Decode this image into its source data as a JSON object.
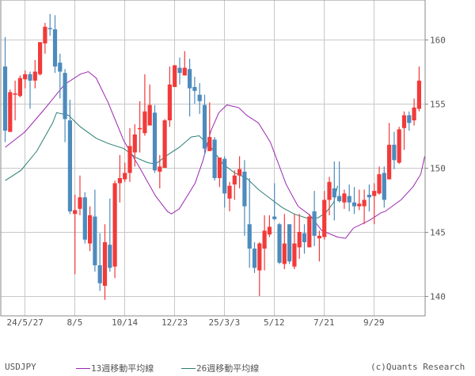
{
  "chart_data": {
    "type": "candlestick",
    "title": "",
    "symbol": "USDJPY",
    "credit": "(c)Quants Research",
    "frequency": "weekly",
    "ylim": [
      138.5,
      162.9
    ],
    "yticks": [
      140,
      145,
      150,
      155,
      160
    ],
    "xticks": [
      "24/5/27",
      "8/5",
      "10/14",
      "12/23",
      "25/3/3",
      "5/12",
      "7/21",
      "9/29"
    ],
    "xtick_candle_index": [
      4,
      14,
      24,
      34,
      44,
      54,
      64,
      74
    ],
    "grid": true,
    "colors": {
      "up": "#f23a3a",
      "down": "#4d8bbd",
      "ma13": "#9b27b0",
      "ma26": "#2a7f74",
      "grid": "#c8c8c8",
      "axis": "#888888"
    },
    "legend": [
      {
        "label": "13週移動平均線",
        "color": "#9b27b0"
      },
      {
        "label": "26週移動平均線",
        "color": "#2a7f74"
      }
    ],
    "candles": [
      [
        157.9,
        160.2,
        152.0,
        152.9
      ],
      [
        152.8,
        156.1,
        152.9,
        155.9
      ],
      [
        155.7,
        156.8,
        153.7,
        155.8
      ],
      [
        155.6,
        157.2,
        155.5,
        157.0
      ],
      [
        156.9,
        157.6,
        156.2,
        157.3
      ],
      [
        157.3,
        157.5,
        154.6,
        156.8
      ],
      [
        156.8,
        158.4,
        156.2,
        157.5
      ],
      [
        157.3,
        159.8,
        157.2,
        159.8
      ],
      [
        159.7,
        161.3,
        158.9,
        161.0
      ],
      [
        160.9,
        162.0,
        160.3,
        160.85
      ],
      [
        160.8,
        161.9,
        157.4,
        157.9
      ],
      [
        158.2,
        158.9,
        155.4,
        157.5
      ],
      [
        157.4,
        157.7,
        152.0,
        153.8
      ],
      [
        153.7,
        155.3,
        146.4,
        146.6
      ],
      [
        146.4,
        147.9,
        141.7,
        146.7
      ],
      [
        146.8,
        149.4,
        146.3,
        147.7
      ],
      [
        147.7,
        148.1,
        144.1,
        144.4
      ],
      [
        144.1,
        147.0,
        143.5,
        146.3
      ],
      [
        146.2,
        148.3,
        141.9,
        142.4
      ],
      [
        142.4,
        144.9,
        140.4,
        141.0
      ],
      [
        140.8,
        145.6,
        139.7,
        144.2
      ],
      [
        144.0,
        147.6,
        141.9,
        142.2
      ],
      [
        142.3,
        149.0,
        141.4,
        148.8
      ],
      [
        148.8,
        151.0,
        147.3,
        149.2
      ],
      [
        149.1,
        150.4,
        148.9,
        149.6
      ],
      [
        149.6,
        153.1,
        148.9,
        151.7
      ],
      [
        151.2,
        153.4,
        150.1,
        152.6
      ],
      [
        153.0,
        155.2,
        151.2,
        153.1
      ],
      [
        152.7,
        157.3,
        152.5,
        154.4
      ],
      [
        153.3,
        156.5,
        154.4,
        154.9
      ],
      [
        154.3,
        154.9,
        149.6,
        149.8
      ],
      [
        149.7,
        151.0,
        148.4,
        150.1
      ],
      [
        150.0,
        153.8,
        150.0,
        153.7
      ],
      [
        153.7,
        157.9,
        153.2,
        156.5
      ],
      [
        156.3,
        157.9,
        156.3,
        158.0
      ],
      [
        157.8,
        158.6,
        156.5,
        157.4
      ],
      [
        157.2,
        159.1,
        157.2,
        157.8
      ],
      [
        157.7,
        158.5,
        154.0,
        156.2
      ],
      [
        156.3,
        157.1,
        155.0,
        156.0
      ],
      [
        155.7,
        156.6,
        154.2,
        155.2
      ],
      [
        154.9,
        155.7,
        151.0,
        151.5
      ],
      [
        151.3,
        155.1,
        151.3,
        152.4
      ],
      [
        152.2,
        152.4,
        149.0,
        149.2
      ],
      [
        149.2,
        150.2,
        148.5,
        150.8
      ],
      [
        150.7,
        150.9,
        146.9,
        148.0
      ],
      [
        147.6,
        148.9,
        146.6,
        148.6
      ],
      [
        148.7,
        149.8,
        147.5,
        149.4
      ],
      [
        149.4,
        150.9,
        148.4,
        149.9
      ],
      [
        149.7,
        150.6,
        144.7,
        147.0
      ],
      [
        145.6,
        149.2,
        142.2,
        143.7
      ],
      [
        143.7,
        144.2,
        141.8,
        142.2
      ],
      [
        142.0,
        144.2,
        140.0,
        144.1
      ],
      [
        143.7,
        146.3,
        142.0,
        145.1
      ],
      [
        144.8,
        146.3,
        144.6,
        145.4
      ],
      [
        146.2,
        148.8,
        145.9,
        146.0
      ],
      [
        145.6,
        145.7,
        142.5,
        142.6
      ],
      [
        142.5,
        146.4,
        142.1,
        144.1
      ],
      [
        145.6,
        145.6,
        142.5,
        142.7
      ],
      [
        142.3,
        146.4,
        142.1,
        144.1
      ],
      [
        143.8,
        146.4,
        142.9,
        145.0
      ],
      [
        144.9,
        145.6,
        143.3,
        144.2
      ],
      [
        143.8,
        146.4,
        143.9,
        146.2
      ],
      [
        146.6,
        148.2,
        143.9,
        144.7
      ],
      [
        144.5,
        145.1,
        142.7,
        144.7
      ],
      [
        144.6,
        148.2,
        144.4,
        147.5
      ],
      [
        147.5,
        149.3,
        146.3,
        148.9
      ],
      [
        148.4,
        150.5,
        145.9,
        147.7
      ],
      [
        147.8,
        150.5,
        147.3,
        147.4
      ],
      [
        147.3,
        148.3,
        146.8,
        148.0
      ],
      [
        147.8,
        148.7,
        146.6,
        147.3
      ],
      [
        147.3,
        148.5,
        146.4,
        147.0
      ],
      [
        147.0,
        148.3,
        146.7,
        147.2
      ],
      [
        147.0,
        148.3,
        145.6,
        147.5
      ],
      [
        147.9,
        148.7,
        146.6,
        147.7
      ],
      [
        147.8,
        148.8,
        145.6,
        148.2
      ],
      [
        148.0,
        150.1,
        147.9,
        149.5
      ],
      [
        149.6,
        150.1,
        146.9,
        147.5
      ],
      [
        149.1,
        153.5,
        149.1,
        151.8
      ],
      [
        151.8,
        152.8,
        149.9,
        150.6
      ],
      [
        150.4,
        153.2,
        150.3,
        153.0
      ],
      [
        153.1,
        154.4,
        151.4,
        154.1
      ],
      [
        154.1,
        154.4,
        152.9,
        153.5
      ],
      [
        153.7,
        155.4,
        153.3,
        154.7
      ],
      [
        154.6,
        157.9,
        154.4,
        156.8
      ]
    ],
    "ma13": [
      [
        0,
        151.6
      ],
      [
        5,
        152.8
      ],
      [
        10,
        154.6
      ],
      [
        15,
        156.5
      ],
      [
        19,
        157.3
      ],
      [
        21,
        157.5
      ],
      [
        23,
        157.0
      ],
      [
        26,
        155.1
      ],
      [
        30,
        152.1
      ],
      [
        34,
        150.0
      ],
      [
        38,
        147.8
      ],
      [
        41,
        146.6
      ],
      [
        42,
        146.4
      ],
      [
        44,
        146.8
      ],
      [
        48,
        148.8
      ],
      [
        50,
        150.6
      ],
      [
        52,
        152.9
      ],
      [
        54,
        154.3
      ],
      [
        56,
        154.9
      ],
      [
        59,
        154.7
      ],
      [
        61,
        154.1
      ],
      [
        64,
        153.5
      ],
      [
        67,
        152.0
      ],
      [
        71,
        148.7
      ],
      [
        74,
        147.0
      ],
      [
        77,
        146.3
      ],
      [
        80,
        145.1
      ],
      [
        84,
        144.6
      ],
      [
        86,
        144.5
      ],
      [
        88,
        145.3
      ],
      [
        92,
        145.9
      ],
      [
        95,
        146.5
      ],
      [
        96,
        146.6
      ],
      [
        100,
        147.5
      ],
      [
        103,
        148.5
      ],
      [
        105,
        149.5
      ],
      [
        106,
        150.9
      ]
    ],
    "ma26": [
      [
        0,
        149.0
      ],
      [
        4,
        149.8
      ],
      [
        8,
        151.3
      ],
      [
        12,
        153.5
      ],
      [
        13,
        154.3
      ],
      [
        16,
        154.1
      ],
      [
        19,
        153.2
      ],
      [
        23,
        152.3
      ],
      [
        26,
        151.9
      ],
      [
        30,
        151.5
      ],
      [
        33,
        150.8
      ],
      [
        36,
        150.4
      ],
      [
        38,
        150.3
      ],
      [
        41,
        151.0
      ],
      [
        44,
        151.6
      ],
      [
        47,
        152.4
      ],
      [
        49,
        152.5
      ],
      [
        52,
        151.6
      ],
      [
        55,
        150.3
      ],
      [
        58,
        149.6
      ],
      [
        61,
        149.2
      ],
      [
        64,
        148.3
      ],
      [
        67,
        147.6
      ],
      [
        70,
        146.9
      ],
      [
        73,
        146.4
      ],
      [
        76,
        146.1
      ],
      [
        79,
        146.1
      ],
      [
        81,
        146.5
      ],
      [
        83,
        147.3
      ],
      [
        84,
        148.6
      ]
    ]
  }
}
